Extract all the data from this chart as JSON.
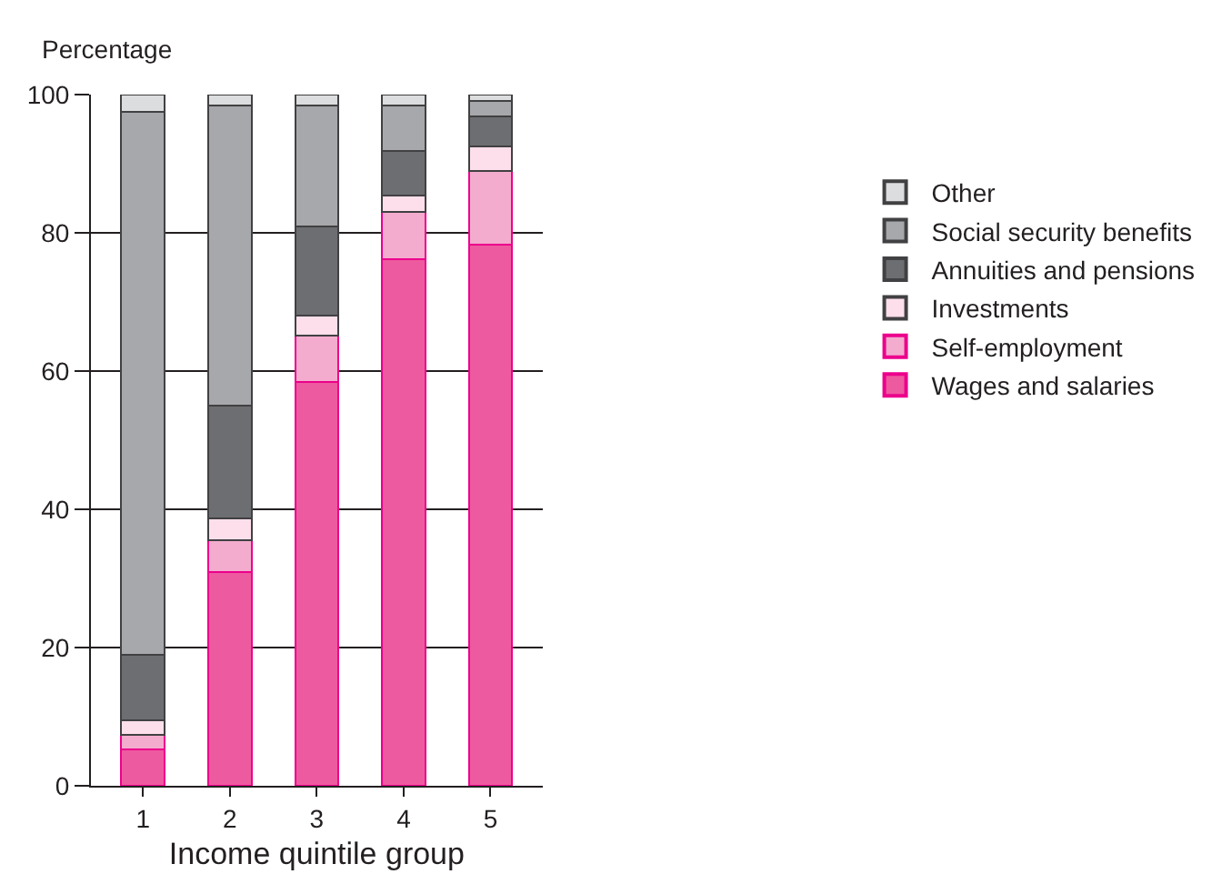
{
  "chart_data": {
    "type": "bar",
    "stacked": true,
    "xlabel": "Income quintile group",
    "ylabel": "Percentage",
    "categories": [
      "1",
      "2",
      "3",
      "4",
      "5"
    ],
    "ylim": [
      0,
      100
    ],
    "yticks": [
      0,
      20,
      40,
      60,
      80,
      100
    ],
    "grid": "y",
    "legend": "right",
    "series": [
      {
        "name": "Wages and salaries",
        "color": "#ee5a9f",
        "values": [
          5.3,
          30.9,
          58.4,
          76.2,
          78.3
        ]
      },
      {
        "name": "Self-employment",
        "color": "#f3acce",
        "values": [
          2.1,
          4.6,
          6.7,
          6.8,
          10.6
        ]
      },
      {
        "name": "Investments",
        "color": "#fddfeb",
        "values": [
          2.1,
          3.2,
          2.9,
          2.4,
          3.6
        ]
      },
      {
        "name": "Annuities and pensions",
        "color": "#6d6e71",
        "values": [
          9.5,
          16.3,
          12.9,
          6.4,
          4.4
        ]
      },
      {
        "name": "Social security benefits",
        "color": "#a7a8ab",
        "values": [
          78.5,
          43.4,
          17.5,
          6.6,
          2.2
        ]
      },
      {
        "name": "Other",
        "color": "#dcddde",
        "values": [
          2.5,
          1.6,
          1.6,
          1.6,
          0.9
        ]
      }
    ]
  }
}
